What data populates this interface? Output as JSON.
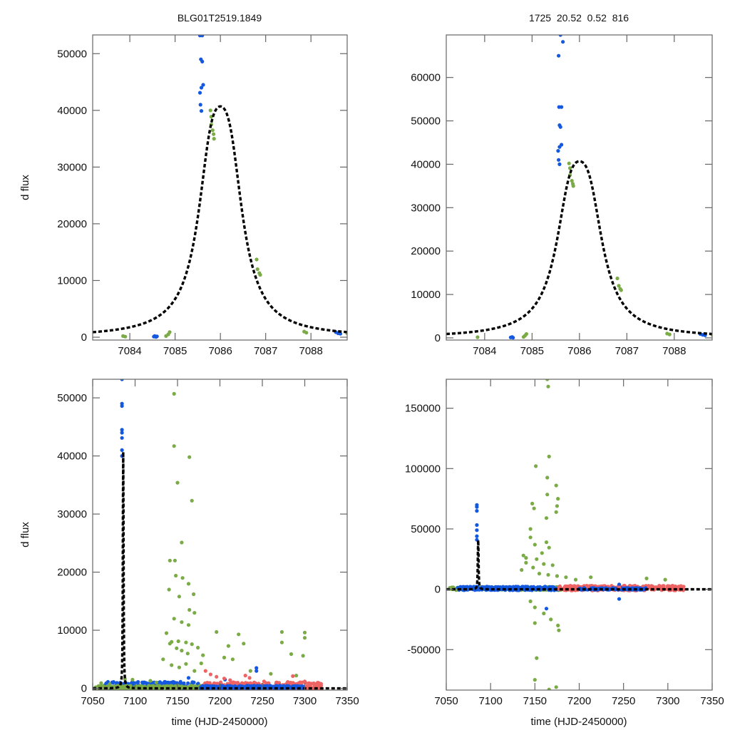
{
  "colors": {
    "blue": "#1458e0",
    "green": "#7aab46",
    "red": "#ee6363",
    "model": "#000000",
    "frame": "#666666"
  },
  "chart_data": [
    {
      "id": "top-left",
      "type": "scatter",
      "title": "BLG01T2519.1849",
      "xlabel": "",
      "ylabel": "d flux",
      "xlim": [
        7083.18,
        7088.8
      ],
      "ylim": [
        -500,
        53300
      ],
      "xticks": [
        7084,
        7085,
        7086,
        7087,
        7088
      ],
      "yticks": [
        0,
        10000,
        20000,
        30000,
        40000,
        50000
      ],
      "model": {
        "type": "paczynski",
        "t0": 7086.0,
        "peak": 40700,
        "tE_eff": 0.47,
        "style": "dashed"
      },
      "series": [
        {
          "name": "blue",
          "points": [
            [
              7085.55,
              53200
            ],
            [
              7085.6,
              53200
            ],
            [
              7085.57,
              49000
            ],
            [
              7085.6,
              48600
            ],
            [
              7085.62,
              44500
            ],
            [
              7085.58,
              44000
            ],
            [
              7085.55,
              43100
            ],
            [
              7085.56,
              41000
            ],
            [
              7085.58,
              39900
            ],
            [
              7084.53,
              100
            ],
            [
              7084.55,
              200
            ],
            [
              7084.58,
              50
            ],
            [
              7084.6,
              150
            ],
            [
              7088.55,
              900
            ],
            [
              7088.6,
              700
            ],
            [
              7088.65,
              600
            ]
          ]
        },
        {
          "name": "green",
          "points": [
            [
              7085.78,
              40000
            ],
            [
              7085.8,
              38900
            ],
            [
              7085.8,
              37500
            ],
            [
              7085.83,
              36500
            ],
            [
              7085.85,
              35800
            ],
            [
              7085.86,
              35000
            ],
            [
              7083.85,
              200
            ],
            [
              7083.9,
              100
            ],
            [
              7084.8,
              200
            ],
            [
              7084.85,
              500
            ],
            [
              7084.88,
              900
            ],
            [
              7086.8,
              13700
            ],
            [
              7086.82,
              12000
            ],
            [
              7086.86,
              11300
            ],
            [
              7086.88,
              11000
            ],
            [
              7087.85,
              1000
            ],
            [
              7087.9,
              800
            ],
            [
              7088.8,
              700
            ]
          ]
        }
      ]
    },
    {
      "id": "top-right",
      "type": "scatter",
      "title": "1725  20.52  0.52  816",
      "xlabel": "",
      "ylabel": "",
      "xlim": [
        7083.19,
        7088.8
      ],
      "ylim": [
        -500,
        69800
      ],
      "xticks": [
        7084,
        7085,
        7086,
        7087,
        7088
      ],
      "yticks": [
        0,
        10000,
        20000,
        30000,
        40000,
        50000,
        60000
      ],
      "model": {
        "type": "paczynski",
        "t0": 7086.0,
        "peak": 40700,
        "tE_eff": 0.47,
        "style": "dashed"
      },
      "series": [
        {
          "name": "blue",
          "points": [
            [
              7085.6,
              69800
            ],
            [
              7085.65,
              68200
            ],
            [
              7085.56,
              65000
            ],
            [
              7085.57,
              53200
            ],
            [
              7085.62,
              53200
            ],
            [
              7085.58,
              49000
            ],
            [
              7085.6,
              48600
            ],
            [
              7085.62,
              44500
            ],
            [
              7085.58,
              44000
            ],
            [
              7085.55,
              43100
            ],
            [
              7085.56,
              41000
            ],
            [
              7085.58,
              40000
            ],
            [
              7084.55,
              100
            ],
            [
              7084.58,
              200
            ],
            [
              7084.6,
              50
            ],
            [
              7088.55,
              900
            ],
            [
              7088.6,
              700
            ],
            [
              7088.65,
              600
            ]
          ]
        },
        {
          "name": "green",
          "points": [
            [
              7085.78,
              40200
            ],
            [
              7085.8,
              39100
            ],
            [
              7085.8,
              37500
            ],
            [
              7085.84,
              36200
            ],
            [
              7085.86,
              35500
            ],
            [
              7085.87,
              35000
            ],
            [
              7083.85,
              150
            ],
            [
              7084.82,
              200
            ],
            [
              7084.85,
              500
            ],
            [
              7084.88,
              900
            ],
            [
              7086.8,
              13700
            ],
            [
              7086.83,
              12000
            ],
            [
              7086.86,
              11300
            ],
            [
              7086.88,
              11000
            ],
            [
              7087.85,
              1000
            ],
            [
              7087.9,
              800
            ],
            [
              7088.8,
              700
            ]
          ]
        }
      ]
    },
    {
      "id": "bottom-left",
      "type": "scatter",
      "title": "",
      "xlabel": "time (HJD-2450000)",
      "ylabel": "d flux",
      "xlim": [
        7050,
        7350
      ],
      "ylim": [
        -300,
        53200
      ],
      "xticks": [
        7050,
        7100,
        7150,
        7200,
        7250,
        7300,
        7350
      ],
      "yticks": [
        0,
        10000,
        20000,
        30000,
        40000,
        50000
      ],
      "model": {
        "type": "paczynski",
        "t0": 7086.0,
        "peak": 40700,
        "tE_eff": 0.47,
        "style": "dashed"
      },
      "series": [
        {
          "name": "blue",
          "points": [
            [
              7084.5,
              53200
            ],
            [
              7084.5,
              49000
            ],
            [
              7084.5,
              48600
            ],
            [
              7084.5,
              44500
            ],
            [
              7084.5,
              44000
            ],
            [
              7084.5,
              43100
            ],
            [
              7084.5,
              41000
            ],
            [
              7084.5,
              40000
            ],
            [
              7163,
              1800
            ],
            [
              7243,
              3500
            ],
            [
              7243,
              3000
            ],
            [
              7206,
              1500
            ]
          ]
        },
        {
          "name": "green",
          "points": [
            [
              7146,
              50700
            ],
            [
              7146,
              41700
            ],
            [
              7164,
              39800
            ],
            [
              7150,
              35400
            ],
            [
              7167,
              32300
            ],
            [
              7155,
              25100
            ],
            [
              7141,
              22000
            ],
            [
              7147,
              22000
            ],
            [
              7148,
              19400
            ],
            [
              7156,
              19000
            ],
            [
              7163,
              18000
            ],
            [
              7140,
              17000
            ],
            [
              7152,
              15800
            ],
            [
              7169,
              16200
            ],
            [
              7164,
              13500
            ],
            [
              7170,
              13000
            ],
            [
              7146,
              12000
            ],
            [
              7155,
              11400
            ],
            [
              7163,
              10900
            ],
            [
              7137,
              9500
            ],
            [
              7143,
              8000
            ],
            [
              7141,
              7700
            ],
            [
              7151,
              8100
            ],
            [
              7160,
              7900
            ],
            [
              7167,
              7600
            ],
            [
              7174,
              7000
            ],
            [
              7149,
              6900
            ],
            [
              7155,
              6500
            ],
            [
              7162,
              6000
            ],
            [
              7133,
              5000
            ],
            [
              7143,
              4000
            ],
            [
              7152,
              3600
            ],
            [
              7160,
              4200
            ],
            [
              7170,
              3000
            ],
            [
              7196,
              9700
            ],
            [
              7222,
              9300
            ],
            [
              7210,
              7300
            ],
            [
              7228,
              7700
            ],
            [
              7300,
              9600
            ],
            [
              7300,
              8700
            ],
            [
              7284,
              5900
            ],
            [
              7298,
              5600
            ],
            [
              7273,
              7900
            ],
            [
              7273,
              9700
            ],
            [
              7180,
              5700
            ],
            [
              7205,
              5300
            ],
            [
              7215,
              5000
            ],
            [
              7236,
              3000
            ],
            [
              7260,
              2500
            ],
            [
              7290,
              2200
            ],
            [
              7088,
              1600
            ],
            [
              7097,
              1500
            ],
            [
              7118,
              1300
            ],
            [
              7060,
              900
            ],
            [
              7070,
              700
            ],
            [
              7125,
              1000
            ],
            [
              7178,
              4300
            ]
          ]
        },
        {
          "name": "red",
          "points": [
            [
              7183,
              3000
            ],
            [
              7189,
              2400
            ],
            [
              7196,
              2000
            ],
            [
              7205,
              1700
            ],
            [
              7212,
              1400
            ],
            [
              7230,
              2200
            ],
            [
              7235,
              1800
            ],
            [
              7252,
              1200
            ],
            [
              7280,
              1100
            ],
            [
              7286,
              2100
            ],
            [
              7300,
              1200
            ],
            [
              7305,
              900
            ]
          ]
        }
      ],
      "bands": [
        {
          "name": "blue",
          "x": [
            7063,
            7177
          ],
          "ymax": 1500
        },
        {
          "name": "green",
          "x": [
            7053,
            7180
          ],
          "ymax": 600
        },
        {
          "name": "red",
          "x": [
            7177,
            7320
          ],
          "ymax": 1400
        },
        {
          "name": "blue",
          "x": [
            7177,
            7300
          ],
          "ymax": 600
        }
      ]
    },
    {
      "id": "bottom-right",
      "type": "scatter",
      "title": "",
      "xlabel": "time (HJD-2450000)",
      "ylabel": "",
      "xlim": [
        7050,
        7350
      ],
      "ylim": [
        -83500,
        174000
      ],
      "xticks": [
        7050,
        7100,
        7150,
        7200,
        7250,
        7300,
        7350
      ],
      "yticks": [
        -50000,
        0,
        50000,
        100000,
        150000
      ],
      "model": {
        "type": "paczynski",
        "t0": 7086.0,
        "peak": 40700,
        "tE_eff": 0.47,
        "style": "dashed"
      },
      "series": [
        {
          "name": "blue",
          "points": [
            [
              7084.5,
              69800
            ],
            [
              7084.5,
              68200
            ],
            [
              7084.5,
              65000
            ],
            [
              7084.5,
              53200
            ],
            [
              7084.5,
              49000
            ],
            [
              7084.5,
              44000
            ],
            [
              7084.5,
              41000
            ],
            [
              7163,
              -16000
            ],
            [
              7245,
              -8000
            ],
            [
              7245,
              4000
            ]
          ]
        },
        {
          "name": "green",
          "points": [
            [
              7164,
              174000
            ],
            [
              7165,
              168000
            ],
            [
              7166,
              110000
            ],
            [
              7151,
              102000
            ],
            [
              7164,
              92500
            ],
            [
              7174,
              86000
            ],
            [
              7164,
              78500
            ],
            [
              7176,
              75000
            ],
            [
              7147,
              71000
            ],
            [
              7149,
              67000
            ],
            [
              7175,
              69000
            ],
            [
              7174,
              64000
            ],
            [
              7163,
              59000
            ],
            [
              7145,
              50000
            ],
            [
              7145,
              43000
            ],
            [
              7150,
              37000
            ],
            [
              7163,
              39000
            ],
            [
              7166,
              34500
            ],
            [
              7158,
              30000
            ],
            [
              7137,
              28000
            ],
            [
              7140,
              26000
            ],
            [
              7152,
              25000
            ],
            [
              7140,
              22000
            ],
            [
              7160,
              21000
            ],
            [
              7170,
              20000
            ],
            [
              7148,
              18000
            ],
            [
              7135,
              16000
            ],
            [
              7155,
              13000
            ],
            [
              7165,
              12000
            ],
            [
              7175,
              11000
            ],
            [
              7185,
              10000
            ],
            [
              7196,
              8000
            ],
            [
              7213,
              10000
            ],
            [
              7276,
              9000
            ],
            [
              7297,
              8000
            ],
            [
              7145,
              -10000
            ],
            [
              7150,
              -15000
            ],
            [
              7160,
              -20000
            ],
            [
              7168,
              -25000
            ],
            [
              7150,
              -28000
            ],
            [
              7176,
              -30000
            ],
            [
              7177,
              -34000
            ],
            [
              7152,
              -57000
            ],
            [
              7150,
              -75000
            ],
            [
              7166,
              -83000
            ],
            [
              7174,
              -81000
            ]
          ]
        },
        {
          "name": "red",
          "points": [
            [
              7210,
              2000
            ],
            [
              7245,
              1500
            ],
            [
              7290,
              2500
            ]
          ]
        }
      ],
      "bands": [
        {
          "name": "green",
          "x": [
            7053,
            7180
          ],
          "ymax": 2500
        },
        {
          "name": "blue",
          "x": [
            7063,
            7177
          ],
          "ymax": 3000
        },
        {
          "name": "red",
          "x": [
            7177,
            7318
          ],
          "ymax": 4000
        },
        {
          "name": "blue",
          "x": [
            7200,
            7275
          ],
          "ymax": 1500
        }
      ]
    }
  ]
}
